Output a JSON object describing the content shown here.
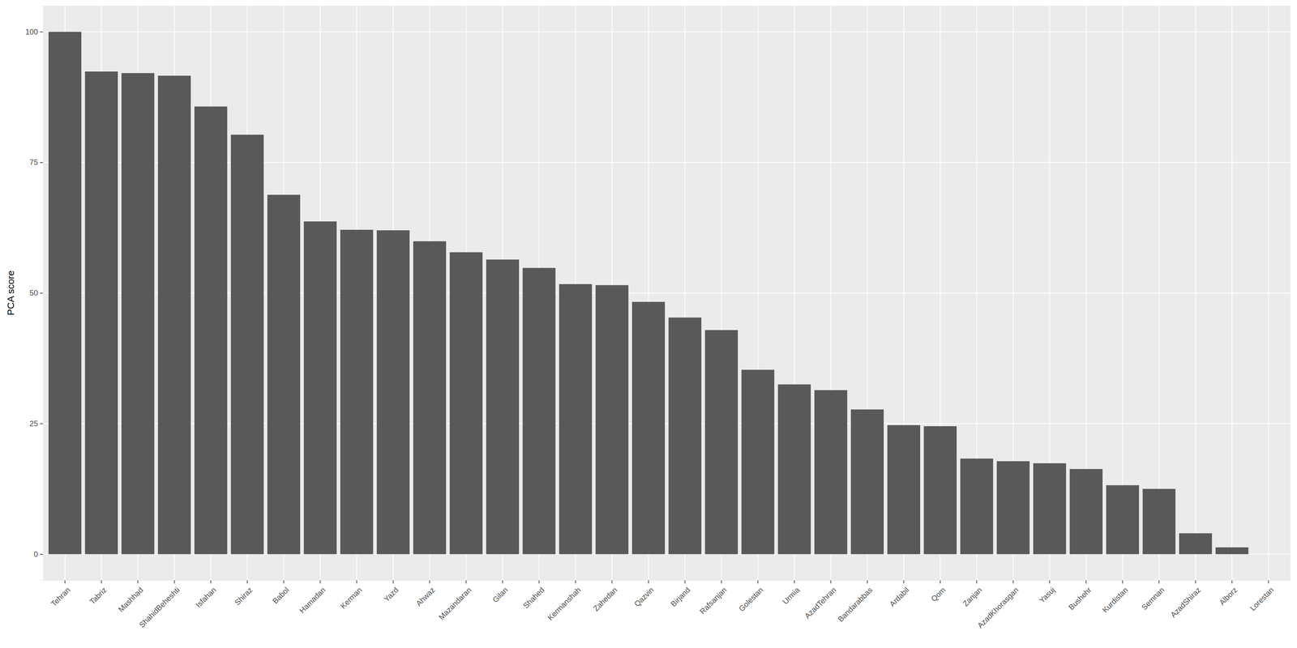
{
  "chart_data": {
    "type": "bar",
    "ylabel": "PCA score",
    "categories": [
      "Tehran",
      "Tabriz",
      "Mashhad",
      "ShahidBeheshti",
      "Isfahan",
      "Shiraz",
      "Babol",
      "Hamadan",
      "Kerman",
      "Yazd",
      "Ahwaz",
      "Mazandaran",
      "Gilan",
      "Shahed",
      "Kermanshah",
      "Zahedan",
      "Qazvin",
      "Birjand",
      "Rafsanjan",
      "Golestan",
      "Urmia",
      "AzadTehran",
      "Bandarabbas",
      "Ardabil",
      "Qom",
      "Zanjan",
      "AzadKhorasgan",
      "Yasuj",
      "Bushehr",
      "Kurdistan",
      "Semnan",
      "AzadShiraz",
      "Alborz",
      "Lorestan"
    ],
    "values": [
      100,
      92.4,
      92.1,
      91.6,
      85.7,
      80.3,
      68.8,
      63.7,
      62.1,
      62.0,
      59.9,
      57.8,
      56.4,
      54.8,
      51.7,
      51.5,
      48.3,
      45.3,
      42.9,
      35.3,
      32.5,
      31.4,
      27.7,
      24.7,
      24.5,
      18.3,
      17.8,
      17.4,
      16.3,
      13.2,
      12.5,
      4.0,
      1.3,
      0
    ],
    "color": "#595959",
    "ylim": [
      -5,
      105
    ],
    "yticks": [
      0,
      25,
      50,
      75,
      100
    ],
    "grid": true
  }
}
